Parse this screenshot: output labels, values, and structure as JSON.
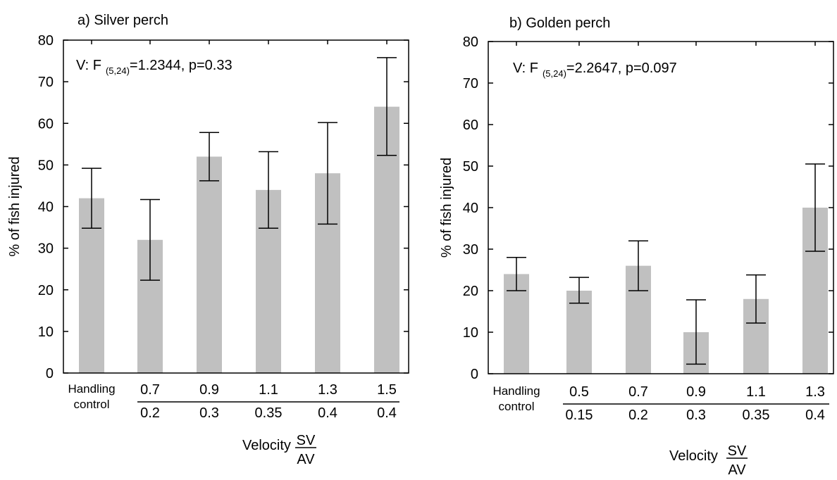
{
  "chart_data": [
    {
      "type": "bar",
      "title": "a) Silver perch",
      "annotation_prefix": "V: F",
      "annotation_subscript": "(5,24)",
      "annotation_suffix": "=1.2344, p=0.33",
      "ylabel": "% of fish injured",
      "ylim": [
        0,
        80
      ],
      "yticks": [
        "0",
        "10",
        "20",
        "30",
        "40",
        "50",
        "60",
        "70",
        "80"
      ],
      "categories": [
        {
          "label": [
            "Handling",
            "control"
          ]
        },
        {
          "top": "0.7",
          "bottom": "0.2"
        },
        {
          "top": "0.9",
          "bottom": "0.3"
        },
        {
          "top": "1.1",
          "bottom": "0.35"
        },
        {
          "top": "1.3",
          "bottom": "0.4"
        },
        {
          "top": "1.5",
          "bottom": "0.4"
        }
      ],
      "values": [
        42,
        32,
        52,
        44,
        48,
        64
      ],
      "err_low": [
        34.8,
        22.3,
        46.2,
        34.8,
        35.8,
        52.3
      ],
      "err_high": [
        49.2,
        41.7,
        57.8,
        53.2,
        60.2,
        75.8
      ],
      "xlabel": "Velocity",
      "xlabel_fraction_top": "SV",
      "xlabel_fraction_bottom": "AV"
    },
    {
      "type": "bar",
      "title": "b) Golden perch",
      "annotation_prefix": "V: F",
      "annotation_subscript": "(5,24)",
      "annotation_suffix": "=2.2647, p=0.097",
      "ylabel": "% of fish injured",
      "ylim": [
        0,
        80
      ],
      "yticks": [
        "0",
        "10",
        "20",
        "30",
        "40",
        "50",
        "60",
        "70",
        "80"
      ],
      "categories": [
        {
          "label": [
            "Handling",
            "control"
          ]
        },
        {
          "top": "0.5",
          "bottom": "0.15"
        },
        {
          "top": "0.7",
          "bottom": "0.2"
        },
        {
          "top": "0.9",
          "bottom": "0.3"
        },
        {
          "top": "1.1",
          "bottom": "0.35"
        },
        {
          "top": "1.3",
          "bottom": "0.4"
        }
      ],
      "values": [
        24,
        20,
        26,
        10,
        18,
        40
      ],
      "err_low": [
        20,
        17,
        20,
        2.3,
        12.2,
        29.5
      ],
      "err_high": [
        28,
        23.2,
        32,
        17.8,
        23.8,
        50.5
      ],
      "xlabel": "Velocity",
      "xlabel_fraction_top": "SV",
      "xlabel_fraction_bottom": "AV"
    }
  ]
}
